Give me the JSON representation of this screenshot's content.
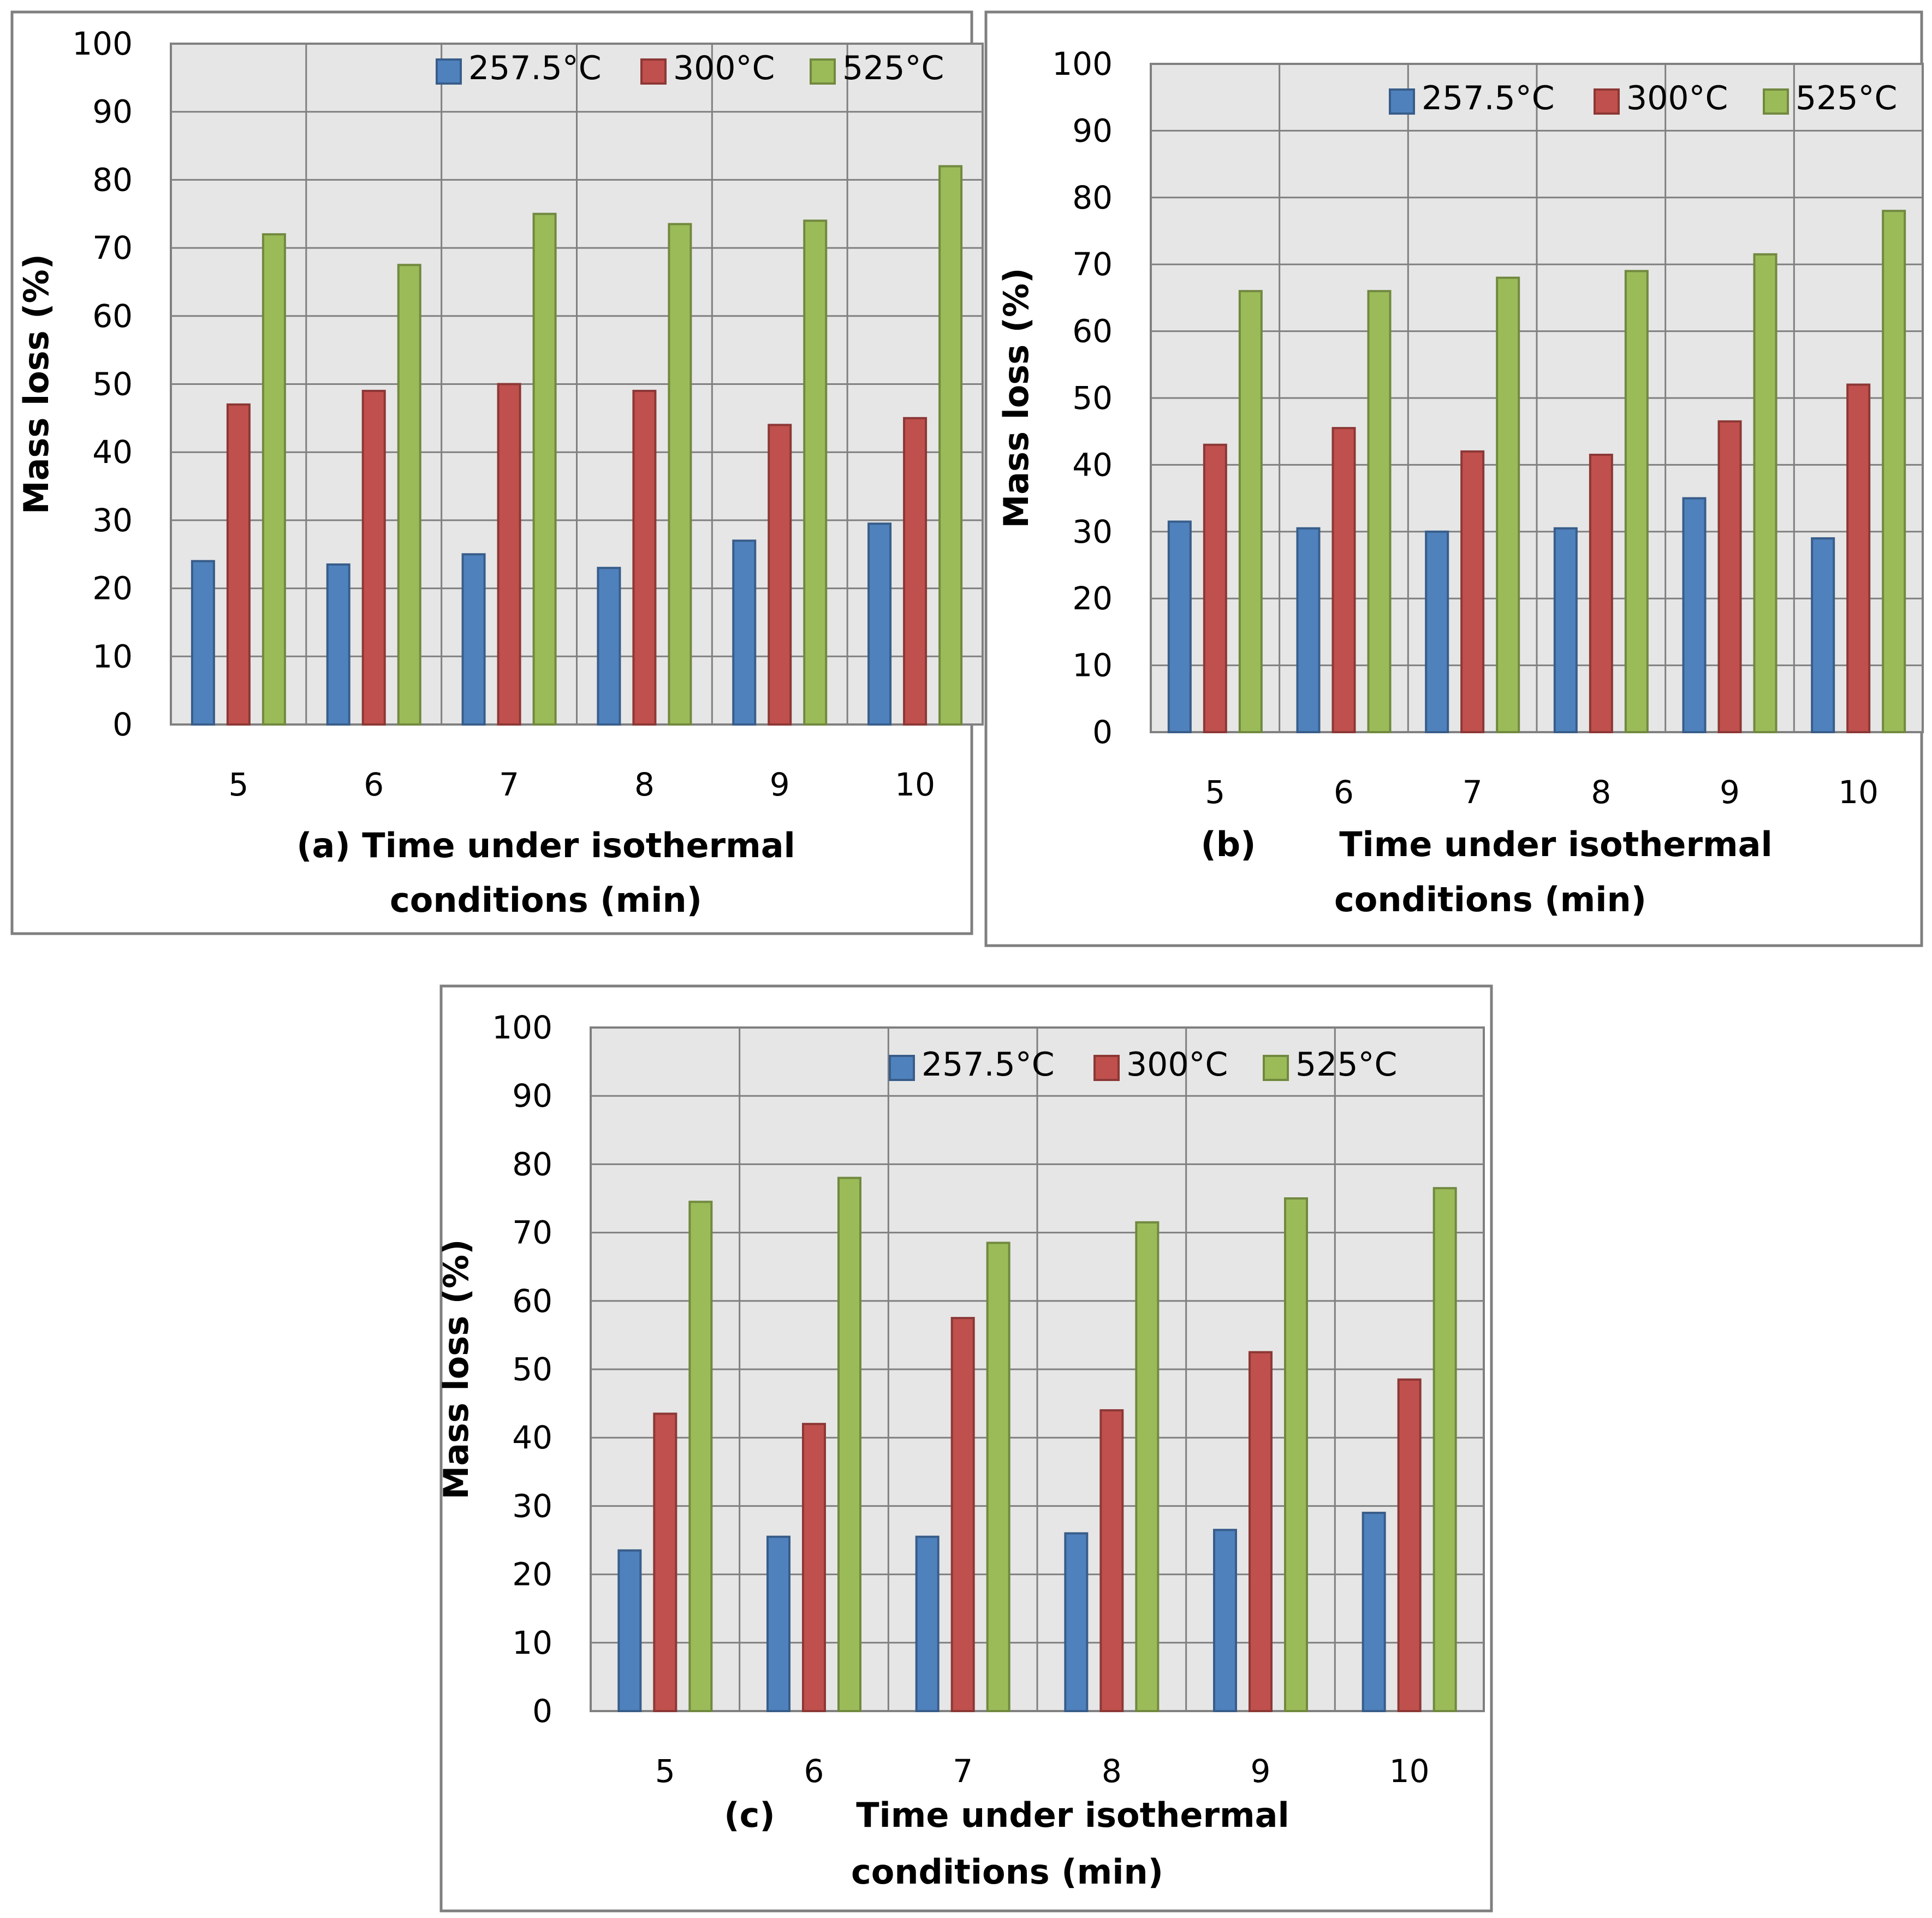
{
  "legend": [
    "257.5°C",
    "300°C",
    "525°C"
  ],
  "colors": {
    "series": [
      "#4f81bd",
      "#c0504d",
      "#9bbb59"
    ],
    "outline": [
      "#385d8a",
      "#8c3836",
      "#71893f"
    ]
  },
  "chart_data": [
    {
      "type": "bar",
      "panel_label": "(a)",
      "categories": [
        "5",
        "6",
        "7",
        "8",
        "9",
        "10"
      ],
      "series": [
        {
          "name": "257.5°C",
          "values": [
            24,
            23.5,
            25,
            23,
            27,
            29.5
          ]
        },
        {
          "name": "300°C",
          "values": [
            47,
            49,
            50,
            49,
            44,
            45
          ]
        },
        {
          "name": "525°C",
          "values": [
            72,
            67.5,
            75,
            73.5,
            74,
            82
          ]
        }
      ],
      "xlabel_line1": "(a) Time under isothermal",
      "xlabel_line2": "conditions (min)",
      "ylabel": "Mass loss (%)",
      "ylim": [
        0,
        100
      ],
      "yticks": [
        "0",
        "10",
        "20",
        "30",
        "40",
        "50",
        "60",
        "70",
        "80",
        "90",
        "100"
      ],
      "grid": true,
      "legend_position": "top-right"
    },
    {
      "type": "bar",
      "panel_label": "(b)",
      "categories": [
        "5",
        "6",
        "7",
        "8",
        "9",
        "10"
      ],
      "series": [
        {
          "name": "257.5°C",
          "values": [
            31.5,
            30.5,
            30,
            30.5,
            35,
            29
          ]
        },
        {
          "name": "300°C",
          "values": [
            43,
            45.5,
            42,
            41.5,
            46.5,
            52
          ]
        },
        {
          "name": "525°C",
          "values": [
            66,
            66,
            68,
            69,
            71.5,
            78
          ]
        }
      ],
      "xlabel_line1": "Time under isothermal",
      "xlabel_line2": "conditions (min)",
      "ylabel": "Mass loss (%)",
      "ylim": [
        0,
        100
      ],
      "yticks": [
        "0",
        "10",
        "20",
        "30",
        "40",
        "50",
        "60",
        "70",
        "80",
        "90",
        "100"
      ],
      "grid": true,
      "legend_position": "top-right"
    },
    {
      "type": "bar",
      "panel_label": "(c)",
      "categories": [
        "5",
        "6",
        "7",
        "8",
        "9",
        "10"
      ],
      "series": [
        {
          "name": "257.5°C",
          "values": [
            23.5,
            25.5,
            25.5,
            26,
            26.5,
            29
          ]
        },
        {
          "name": "300°C",
          "values": [
            43.5,
            42,
            57.5,
            44,
            52.5,
            48.5
          ]
        },
        {
          "name": "525°C",
          "values": [
            74.5,
            78,
            68.5,
            71.5,
            75,
            76.5
          ]
        }
      ],
      "xlabel_line1": "Time under isothermal",
      "xlabel_line2": "conditions (min)",
      "ylabel": "Mass loss (%)",
      "ylim": [
        0,
        100
      ],
      "yticks": [
        "0",
        "10",
        "20",
        "30",
        "40",
        "50",
        "60",
        "70",
        "80",
        "90",
        "100"
      ],
      "grid": true,
      "legend_position": "top-right"
    }
  ]
}
